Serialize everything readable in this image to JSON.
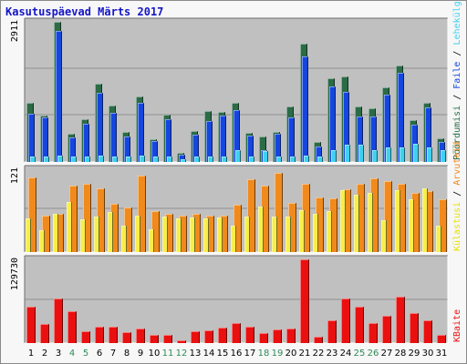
{
  "title": "Kasutuspäevad Märts 2017",
  "colors": {
    "panel_bg": "#c0c0c0",
    "gridline": "#8f8f8f",
    "pages": "#2b6b46",
    "hits": "#1546e0",
    "files": "#3fd0f0",
    "visits": "#f08a1c",
    "sites": "#f8ee4a",
    "kbytes": "#ea1010",
    "weekday_label": "#000000",
    "weekend_label": "#2e8b57"
  },
  "legend": {
    "top": [
      {
        "text": "Pöördumisi",
        "color": "#2b6b46"
      },
      {
        "text": " / ",
        "color": "#000000"
      },
      {
        "text": "Faile",
        "color": "#1546e0"
      },
      {
        "text": " / ",
        "color": "#000000"
      },
      {
        "text": "Lehekülgi",
        "color": "#3fd0f0"
      }
    ],
    "middle": [
      {
        "text": "Külastusi",
        "color": "#e8e000"
      },
      {
        "text": " / ",
        "color": "#000000"
      },
      {
        "text": "Arvuteid",
        "color": "#f08a1c"
      }
    ],
    "bottom": [
      {
        "text": "KBaite",
        "color": "#ea1010"
      }
    ]
  },
  "chart_data": {
    "type": "bar",
    "title": "Kasutuspäevad Märts 2017",
    "days": [
      "1",
      "2",
      "3",
      "4",
      "5",
      "6",
      "7",
      "8",
      "9",
      "10",
      "11",
      "12",
      "13",
      "14",
      "15",
      "16",
      "17",
      "18",
      "19",
      "20",
      "21",
      "22",
      "23",
      "24",
      "25",
      "26",
      "27",
      "28",
      "29",
      "30",
      "31"
    ],
    "weekend_days": [
      "4",
      "5",
      "11",
      "12",
      "18",
      "19",
      "25",
      "26"
    ],
    "panels": [
      {
        "ymax_label": "2911",
        "ymax": 2911,
        "series": [
          {
            "name": "Pöördumisi",
            "values": [
              1220,
              960,
              2911,
              580,
              880,
              1620,
              1180,
              630,
              1360,
              470,
              990,
              190,
              640,
              1050,
              1040,
              1220,
              610,
              530,
              630,
              1160,
              2460,
              420,
              1730,
              1770,
              1160,
              1110,
              1550,
              2000,
              870,
              1230,
              500
            ]
          },
          {
            "name": "Faile",
            "values": [
              1010,
              930,
              2720,
              510,
              800,
              1430,
              1030,
              520,
              1220,
              440,
              890,
              160,
              560,
              860,
              970,
              1070,
              550,
              250,
              590,
              930,
              2200,
              330,
              1560,
              1450,
              940,
              950,
              1390,
              1850,
              780,
              1130,
              420
            ]
          },
          {
            "name": "Lehekülgi",
            "values": [
              120,
              110,
              130,
              120,
              120,
              130,
              120,
              110,
              130,
              110,
              120,
              60,
              110,
              110,
              120,
              240,
              120,
              230,
              120,
              120,
              130,
              120,
              240,
              350,
              350,
              250,
              300,
              310,
              380,
              300,
              250
            ]
          }
        ]
      },
      {
        "ymax_label": "121",
        "ymax": 121,
        "series": [
          {
            "name": "Arvuteid",
            "values": [
              114,
              56,
              59,
              102,
              105,
              98,
              74,
              68,
              117,
              63,
              59,
              56,
              58,
              56,
              55,
              73,
              111,
              102,
              121,
              75,
              105,
              84,
              82,
              96,
              105,
              112,
              108,
              104,
              91,
              93,
              81
            ]
          },
          {
            "name": "Külastusi",
            "values": [
              52,
              33,
              58,
              76,
              50,
              54,
              61,
              40,
              56,
              35,
              54,
              51,
              53,
              52,
              53,
              40,
              54,
              70,
              54,
              54,
              64,
              58,
              62,
              95,
              87,
              90,
              49,
              95,
              80,
              97,
              41
            ]
          }
        ]
      },
      {
        "ymax_label": "129730",
        "ymax": 129730,
        "series": [
          {
            "name": "KBaite",
            "values": [
              56000,
              30000,
              69000,
              50000,
              19000,
              26000,
              26000,
              17000,
              23000,
              12000,
              13000,
              4500,
              18000,
              20000,
              24000,
              31000,
              26000,
              16000,
              21000,
              22000,
              129730,
              10000,
              35000,
              69000,
              57000,
              31000,
              43000,
              72000,
              46000,
              35000,
              12000
            ]
          }
        ]
      }
    ]
  }
}
